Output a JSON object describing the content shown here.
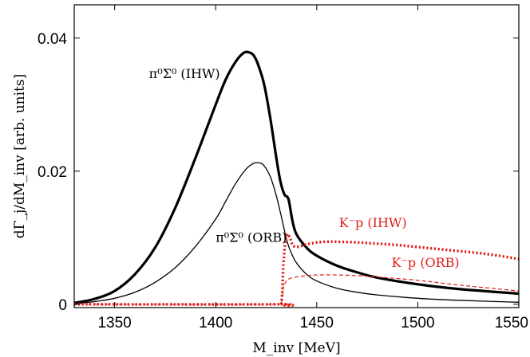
{
  "chart_data": {
    "type": "line",
    "xlabel": "M_inv [MeV]",
    "ylabel": "dΓ_j/dM_inv [arb. units]",
    "xlim": [
      1330,
      1550
    ],
    "ylim": [
      -0.0005,
      0.045
    ],
    "x_ticks": [
      1350,
      1400,
      1450,
      1500,
      1550
    ],
    "x_tick_labels": [
      "1350",
      "1400",
      "1450",
      "1500",
      "1550"
    ],
    "y_ticks": [
      0,
      0.02,
      0.04
    ],
    "y_tick_labels": [
      "0",
      "0.02",
      "0.04"
    ],
    "grid": false,
    "legend": "none",
    "series": [
      {
        "name": "π⁰Σ⁰ (IHW)",
        "color": "#000000",
        "style": "solid-thick",
        "x": [
          1330,
          1340,
          1350,
          1360,
          1370,
          1380,
          1390,
          1400,
          1405,
          1410,
          1414,
          1417,
          1419,
          1421,
          1424,
          1427,
          1430,
          1432,
          1434,
          1436,
          1438,
          1440,
          1445,
          1450,
          1460,
          1470,
          1480,
          1500,
          1520,
          1550
        ],
        "y": [
          0.0002,
          0.0008,
          0.002,
          0.0045,
          0.0085,
          0.0145,
          0.022,
          0.03,
          0.0338,
          0.0365,
          0.0378,
          0.0378,
          0.0373,
          0.036,
          0.033,
          0.028,
          0.022,
          0.0185,
          0.0165,
          0.0158,
          0.0125,
          0.0105,
          0.0085,
          0.0073,
          0.0058,
          0.0048,
          0.004,
          0.003,
          0.0023,
          0.0016
        ]
      },
      {
        "name": "π⁰Σ⁰ (ORB)",
        "color": "#000000",
        "style": "solid-thin",
        "x": [
          1330,
          1340,
          1350,
          1360,
          1370,
          1380,
          1390,
          1400,
          1405,
          1410,
          1415,
          1419,
          1422,
          1424,
          1427,
          1430,
          1433,
          1435,
          1437,
          1440,
          1445,
          1450,
          1460,
          1470,
          1480,
          1500,
          1520,
          1550
        ],
        "y": [
          0.0001,
          0.0004,
          0.0009,
          0.0018,
          0.0033,
          0.0055,
          0.0087,
          0.0128,
          0.0155,
          0.0182,
          0.0203,
          0.0212,
          0.0212,
          0.0208,
          0.0192,
          0.0163,
          0.0125,
          0.0098,
          0.008,
          0.0062,
          0.0045,
          0.0035,
          0.0024,
          0.0018,
          0.0014,
          0.0009,
          0.0006,
          0.0003
        ]
      },
      {
        "name": "K⁻p (IHW)",
        "color": "#e0201a",
        "style": "dotted-thick",
        "x": [
          1330,
          1430,
          1432.5,
          1433.5,
          1434.5,
          1435.5,
          1436,
          1437,
          1438,
          1440,
          1445,
          1450,
          1455,
          1460,
          1470,
          1480,
          1490,
          1500,
          1510,
          1520,
          1530,
          1540,
          1550
        ],
        "y": [
          0,
          0,
          0.0003,
          0.006,
          0.0095,
          0.0105,
          0.0104,
          0.0098,
          0.009,
          0.0086,
          0.009,
          0.0093,
          0.0094,
          0.0094,
          0.0093,
          0.0091,
          0.0089,
          0.0086,
          0.0083,
          0.008,
          0.0077,
          0.0073,
          0.0068
        ]
      },
      {
        "name": "K⁻p (ORB)",
        "color": "#e0201a",
        "style": "dashed-thin",
        "x": [
          1330,
          1430,
          1432.5,
          1433.5,
          1435,
          1437,
          1440,
          1445,
          1450,
          1460,
          1470,
          1480,
          1500,
          1520,
          1550
        ],
        "y": [
          0,
          0,
          0.0003,
          0.0025,
          0.0035,
          0.0039,
          0.0041,
          0.0043,
          0.0044,
          0.0044,
          0.0043,
          0.0041,
          0.0036,
          0.0029,
          0.002
        ]
      }
    ],
    "annotations": [
      {
        "id": "ihw-pi",
        "text": "π⁰Σ⁰ (IHW)",
        "color": "#000000",
        "x": 1367,
        "y": 0.034
      },
      {
        "id": "orb-pi",
        "text": "π⁰Σ⁰ (ORB)",
        "color": "#000000",
        "x": 1400,
        "y": 0.0094
      },
      {
        "id": "ihw-k",
        "text": "K⁻p (IHW)",
        "color": "#e0201a",
        "x": 1461,
        "y": 0.0116
      },
      {
        "id": "orb-k",
        "text": "K⁻p (ORB)",
        "color": "#e0201a",
        "x": 1487,
        "y": 0.0056
      }
    ]
  }
}
